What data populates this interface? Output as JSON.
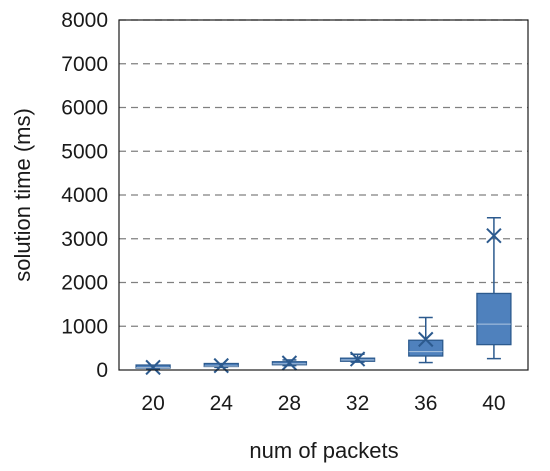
{
  "chart_data": {
    "type": "box",
    "title": "",
    "xlabel": "num of packets",
    "ylabel": "solution time (ms)",
    "categories": [
      "20",
      "24",
      "28",
      "32",
      "36",
      "40"
    ],
    "ylim": [
      0,
      8000
    ],
    "yticks": [
      0,
      1000,
      2000,
      3000,
      4000,
      5000,
      6000,
      7000,
      8000
    ],
    "grid": "horizontal-dashed",
    "legend": "none",
    "series": [
      {
        "boxes": [
          {
            "category": "20",
            "min": 25,
            "q1": 45,
            "median": 55,
            "q3": 70,
            "max": 95,
            "mean": 60
          },
          {
            "category": "24",
            "min": 60,
            "q1": 80,
            "median": 90,
            "q3": 110,
            "max": 140,
            "mean": 100
          },
          {
            "category": "28",
            "min": 100,
            "q1": 120,
            "median": 140,
            "q3": 180,
            "max": 230,
            "mean": 160
          },
          {
            "category": "32",
            "min": 180,
            "q1": 200,
            "median": 230,
            "q3": 270,
            "max": 360,
            "mean": 250
          },
          {
            "category": "36",
            "min": 170,
            "q1": 320,
            "median": 420,
            "q3": 680,
            "max": 1200,
            "mean": 700
          },
          {
            "category": "40",
            "min": 260,
            "q1": 580,
            "median": 1050,
            "q3": 1750,
            "max": 3480,
            "mean": 3070
          }
        ]
      }
    ],
    "colors": {
      "box_fill": "#4f81bd",
      "box_stroke": "#2c5a8e",
      "whisker": "#2c5a8e",
      "grid": "#808080",
      "axis": "#1a1a1a",
      "text": "#1a1a1a"
    }
  }
}
